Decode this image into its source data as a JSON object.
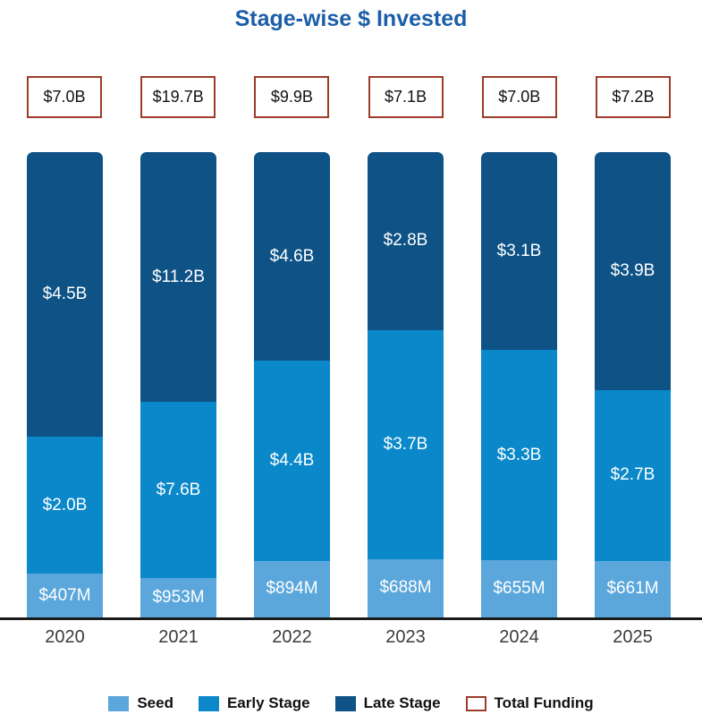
{
  "title": "Stage-wise $ Invested",
  "chart_data": {
    "type": "bar",
    "subtype": "stacked-100-percent-columns",
    "title": "Stage-wise $ Invested",
    "xlabel": "",
    "ylabel": "",
    "grid": false,
    "y_axis_visible": false,
    "legend_position": "bottom",
    "categories": [
      "2020",
      "2021",
      "2022",
      "2023",
      "2024",
      "2025"
    ],
    "totals": {
      "name": "Total Funding",
      "labels": [
        "$7.0B",
        "$19.7B",
        "$9.9B",
        "$7.1B",
        "$7.0B",
        "$7.2B"
      ],
      "values_busd": [
        7.0,
        19.7,
        9.9,
        7.1,
        7.0,
        7.2
      ],
      "box_border_color": "#9E3B2B"
    },
    "series": [
      {
        "name": "Seed",
        "color": "#5BA7DB",
        "values_busd": [
          0.407,
          0.953,
          0.894,
          0.688,
          0.655,
          0.661
        ],
        "labels": [
          "$407M",
          "$953M",
          "$894M",
          "$688M",
          "$655M",
          "$661M"
        ]
      },
      {
        "name": "Early Stage",
        "color": "#0A88C9",
        "values_busd": [
          2.0,
          7.6,
          4.4,
          3.7,
          3.3,
          2.7
        ],
        "labels": [
          "$2.0B",
          "$7.6B",
          "$4.4B",
          "$3.7B",
          "$3.3B",
          "$2.7B"
        ]
      },
      {
        "name": "Late Stage",
        "color": "#0E5286",
        "values_busd": [
          4.5,
          11.2,
          4.6,
          2.8,
          3.1,
          3.9
        ],
        "labels": [
          "$4.5B",
          "$11.2B",
          "$4.6B",
          "$2.8B",
          "$3.1B",
          "$3.9B"
        ]
      }
    ],
    "stack_order_bottom_to_top": [
      "Seed",
      "Early Stage",
      "Late Stage"
    ],
    "legend": [
      {
        "label": "Seed",
        "swatch_color": "#5BA7DB",
        "swatch_style": "filled"
      },
      {
        "label": "Early Stage",
        "swatch_color": "#0A88C9",
        "swatch_style": "filled"
      },
      {
        "label": "Late Stage",
        "swatch_color": "#0E5286",
        "swatch_style": "filled"
      },
      {
        "label": "Total Funding",
        "swatch_color": "#9E3B2B",
        "swatch_style": "outline"
      }
    ]
  },
  "colors": {
    "title_text": "#1C5FA8",
    "axis_line": "#1a1a1a",
    "year_text": "#3B3B3B",
    "segment_label_text": "#ffffff",
    "total_box_text": "#111111",
    "background": "#ffffff"
  }
}
